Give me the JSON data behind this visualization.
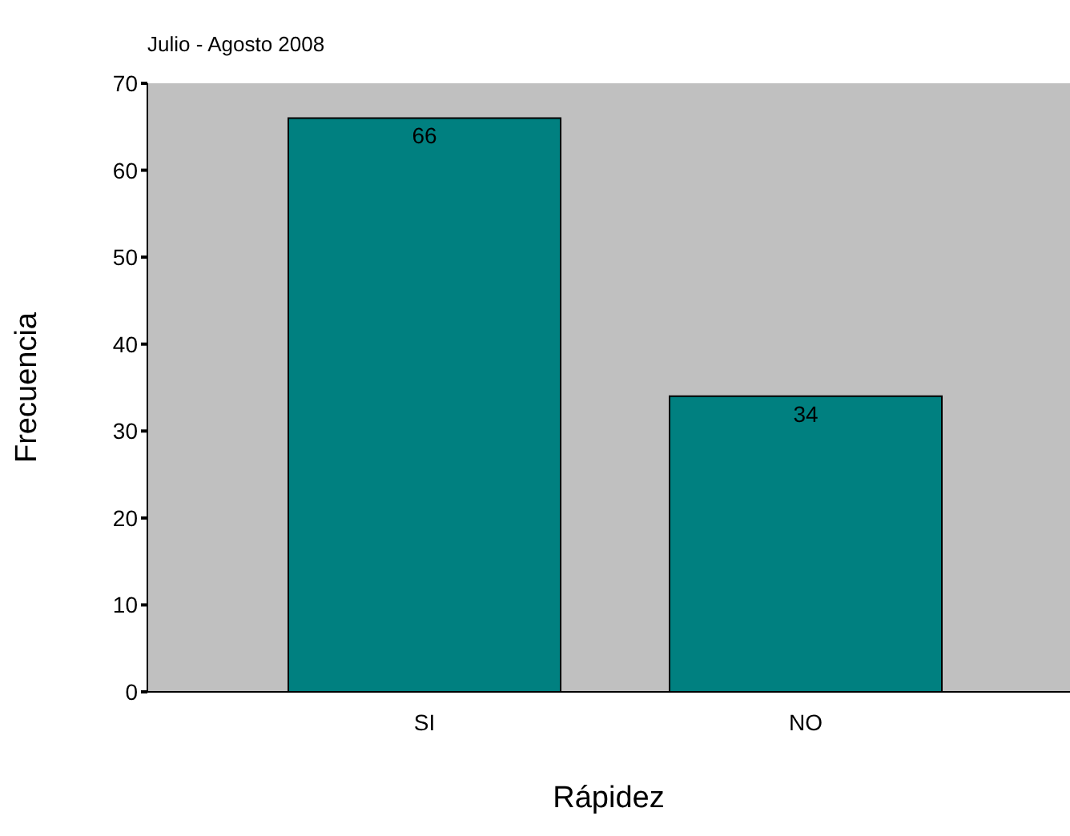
{
  "chart_data": {
    "type": "bar",
    "title": "Julio - Agosto 2008",
    "xlabel": "Rápidez",
    "ylabel": "Frecuencia",
    "categories": [
      "SI",
      "NO"
    ],
    "series": [
      {
        "color": "#008080",
        "values": [
          66,
          34
        ]
      }
    ],
    "ylim": [
      0,
      70
    ],
    "yticks": [
      0,
      10,
      20,
      30,
      40,
      50,
      60,
      70
    ],
    "grid": false,
    "legend": false,
    "data_labels": true
  }
}
